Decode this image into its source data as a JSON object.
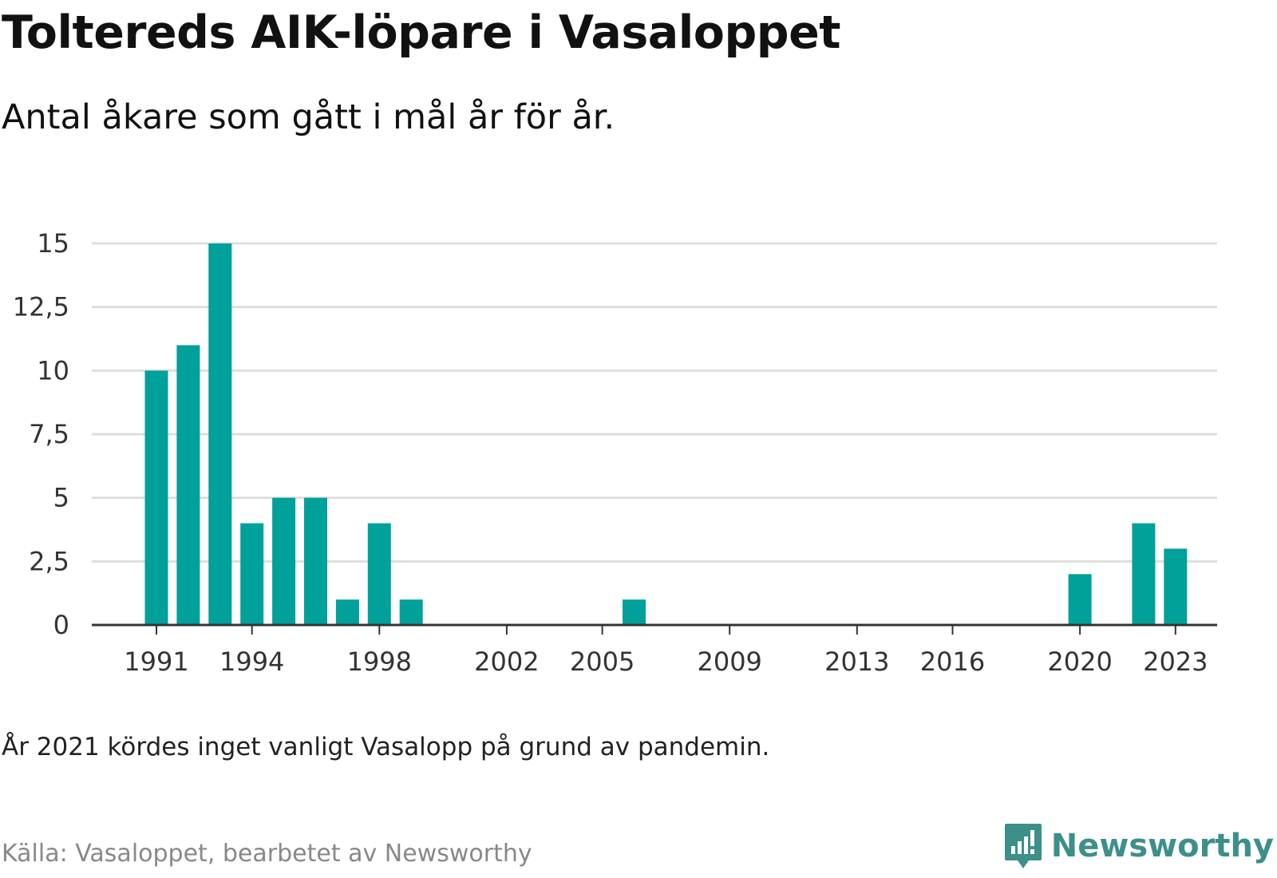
{
  "header": {
    "title": "Toltereds AIK-löpare i Vasaloppet",
    "subtitle": "Antal åkare som gått i mål år för år."
  },
  "footer": {
    "note": "År 2021 kördes inget vanligt Vasalopp på grund av pandemin.",
    "source": "Källa: Vasaloppet, bearbetet av Newsworthy",
    "logo_text": "Newsworthy",
    "logo_icon": "newsworthy-logo-icon"
  },
  "colors": {
    "bar": "#00a19a",
    "grid": "#dedede",
    "axis": "#333333",
    "logo": "#3d8f8a"
  },
  "chart_data": {
    "type": "bar",
    "categories": [
      1991,
      1992,
      1993,
      1994,
      1995,
      1996,
      1997,
      1998,
      1999,
      2000,
      2001,
      2002,
      2003,
      2004,
      2005,
      2006,
      2007,
      2008,
      2009,
      2010,
      2011,
      2012,
      2013,
      2014,
      2015,
      2016,
      2017,
      2018,
      2019,
      2020,
      2021,
      2022,
      2023
    ],
    "values": [
      10,
      11,
      15,
      4,
      5,
      5,
      1,
      4,
      1,
      0,
      0,
      0,
      0,
      0,
      0,
      1,
      0,
      0,
      0,
      0,
      0,
      0,
      0,
      0,
      0,
      0,
      0,
      0,
      0,
      2,
      0,
      4,
      3
    ],
    "x_tick_labels": [
      "1991",
      "1994",
      "1998",
      "2002",
      "2005",
      "2009",
      "2013",
      "2016",
      "2020",
      "2023"
    ],
    "y_ticks": [
      0,
      2.5,
      5,
      7.5,
      10,
      12.5,
      15
    ],
    "y_tick_labels": [
      "0",
      "2,5",
      "5",
      "7,5",
      "10",
      "12,5",
      "15"
    ],
    "ylim": [
      0,
      15
    ],
    "grid": true,
    "legend": "none",
    "xlabel": "",
    "ylabel": ""
  }
}
